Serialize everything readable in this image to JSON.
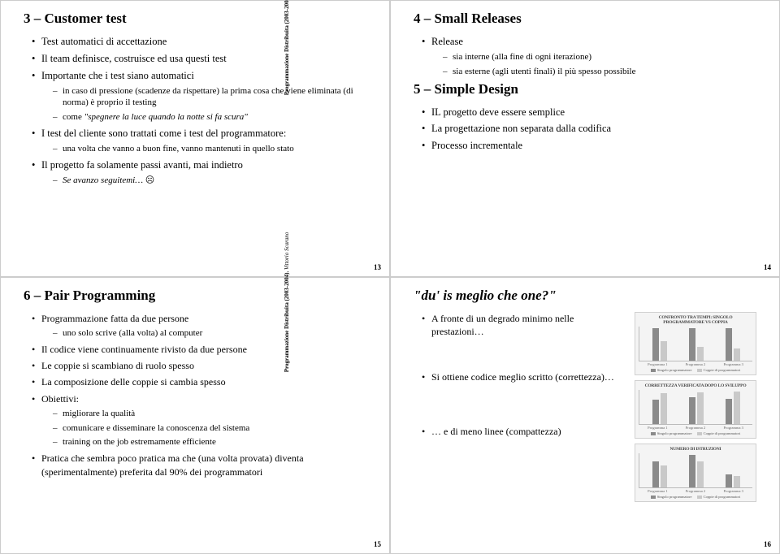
{
  "side_label": {
    "course": "Programmazione Distribuita (2003-2004).",
    "author": "Vittorio Scarano"
  },
  "slides": {
    "tl": {
      "pagenum": "13",
      "title": "3 – Customer test",
      "b1": "Test automatici di accettazione",
      "b2": "Il team definisce, costruisce ed usa questi test",
      "b3": "Importante che i test siano automatici",
      "b3a": "in caso di pressione (scadenze da rispettare) la prima cosa che viene eliminata (di norma) è proprio il testing",
      "b3b_pre": "come ",
      "b3b_it": "\"spegnere la luce quando la notte si fa scura\"",
      "b4": "I test del cliente sono trattati come i test del programmatore:",
      "b4a": "una volta che vanno a buon fine, vanno mantenuti in quello stato",
      "b5": "Il progetto fa solamente passi avanti, mai indietro",
      "b5a_it": "Se avanzo seguitemi… ",
      "b5a_emoji": "☹"
    },
    "tr": {
      "pagenum": "14",
      "title": "4 – Small Releases",
      "b1": "Release",
      "b1a": "sia interne (alla fine di ogni iterazione)",
      "b1b": "sia esterne (agli utenti finali) il più spesso possibile",
      "subtitle": "5 – Simple Design",
      "b2": "IL progetto deve essere semplice",
      "b3": "La progettazione non  separata dalla codifica",
      "b4": "Processo incrementale"
    },
    "bl": {
      "pagenum": "15",
      "title": "6 – Pair Programming",
      "b1": "Programmazione fatta da due persone",
      "b1a": "uno solo scrive (alla volta) al computer",
      "b2": "Il codice viene continuamente rivisto da due persone",
      "b3": "Le coppie si scambiano di ruolo spesso",
      "b4": "La composizione delle coppie si cambia spesso",
      "b5": "Obiettivi:",
      "b5a": "migliorare la qualità",
      "b5b": "comunicare e disseminare la conoscenza del sistema",
      "b5c": "training on the job estremamente efficiente",
      "b6": "Pratica che sembra poco pratica ma che (una volta provata) diventa (sperimentalmente) preferita dal 90% dei programmatori"
    },
    "br": {
      "pagenum": "16",
      "title_it": "\"du' is meglio che one?\"",
      "b1": "A fronte di un degrado minimo nelle prestazioni…",
      "b2": "Si ottiene codice meglio scritto (correttezza)…",
      "b3": "… e di meno linee (compattezza)",
      "chart1": {
        "title": "CONFRONTO TRA TEMPI: SINGOLO PROGRAMMATORE VS COPPIA",
        "xlabels": [
          "Programma 1",
          "Programma 2",
          "Programma 3"
        ],
        "series_colors": [
          "#8a8a8a",
          "#c9c9c9"
        ],
        "legend": [
          "Singolo programmatore",
          "Coppie di programmatori"
        ],
        "groups": [
          [
            100,
            60
          ],
          [
            100,
            42
          ],
          [
            100,
            38
          ]
        ]
      },
      "chart2": {
        "title": "CORRETTEZZA VERIFICATA DOPO LO SVILUPPO",
        "xlabels": [
          "Programma 1",
          "Programma 2",
          "Programma 3"
        ],
        "series_colors": [
          "#8a8a8a",
          "#c9c9c9"
        ],
        "legend": [
          "Singolo programmatore",
          "Coppie di programmatori"
        ],
        "groups": [
          [
            70,
            88
          ],
          [
            76,
            90
          ],
          [
            72,
            92
          ]
        ]
      },
      "chart3": {
        "title": "NUMERO DI ISTRUZIONI",
        "xlabels": [
          "Programma 1",
          "Programma 2",
          "Programma 3"
        ],
        "series_colors": [
          "#8a8a8a",
          "#c9c9c9"
        ],
        "legend": [
          "Singolo programmatore",
          "Coppie di programmatori"
        ],
        "groups": [
          [
            60,
            50
          ],
          [
            75,
            60
          ],
          [
            30,
            26
          ]
        ]
      }
    }
  }
}
